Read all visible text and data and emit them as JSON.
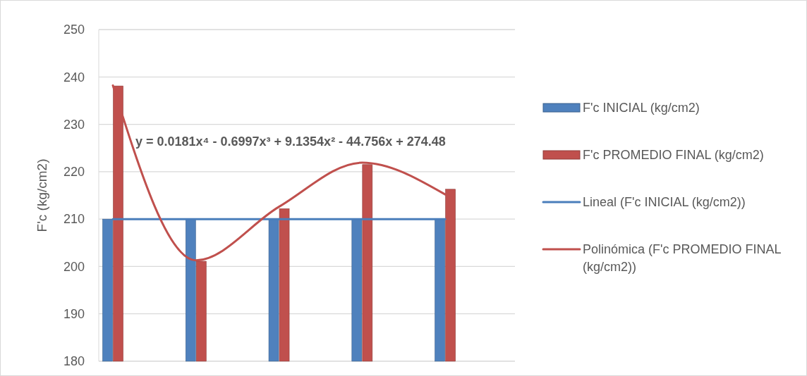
{
  "chart_data": {
    "type": "bar",
    "ylabel": "F'c (kg/cm2)",
    "categories": [
      null,
      null,
      null,
      null,
      null
    ],
    "series": [
      {
        "name": "F'c INICIAL (kg/cm2)",
        "color": "#4f81bd",
        "values": [
          210,
          210,
          210,
          210,
          210
        ]
      },
      {
        "name": "F'c PROMEDIO FINAL (kg/cm2)",
        "color": "#c0504d",
        "values": [
          238.1,
          201.1,
          212.2,
          221.5,
          216.3
        ]
      },
      {
        "name": "Lineal (F'c INICIAL (kg/cm2))",
        "type": "line",
        "color": "#4a7ebb",
        "values": [
          210,
          210,
          210,
          210,
          210
        ]
      },
      {
        "name": "Polinómica (F'c PROMEDIO FINAL (kg/cm2))",
        "type": "line",
        "color": "#c0504d",
        "values": [
          238.2,
          201.3,
          212.6,
          221.9,
          215.2
        ]
      }
    ],
    "ylim": [
      180,
      250
    ],
    "yticks": [
      180,
      190,
      200,
      210,
      220,
      230,
      240,
      250
    ],
    "grid": "y",
    "legend": "right",
    "annotations": [
      "y = 0.0181x⁴ - 0.6997x³ + 9.1354x² - 44.756x + 274.48"
    ]
  }
}
